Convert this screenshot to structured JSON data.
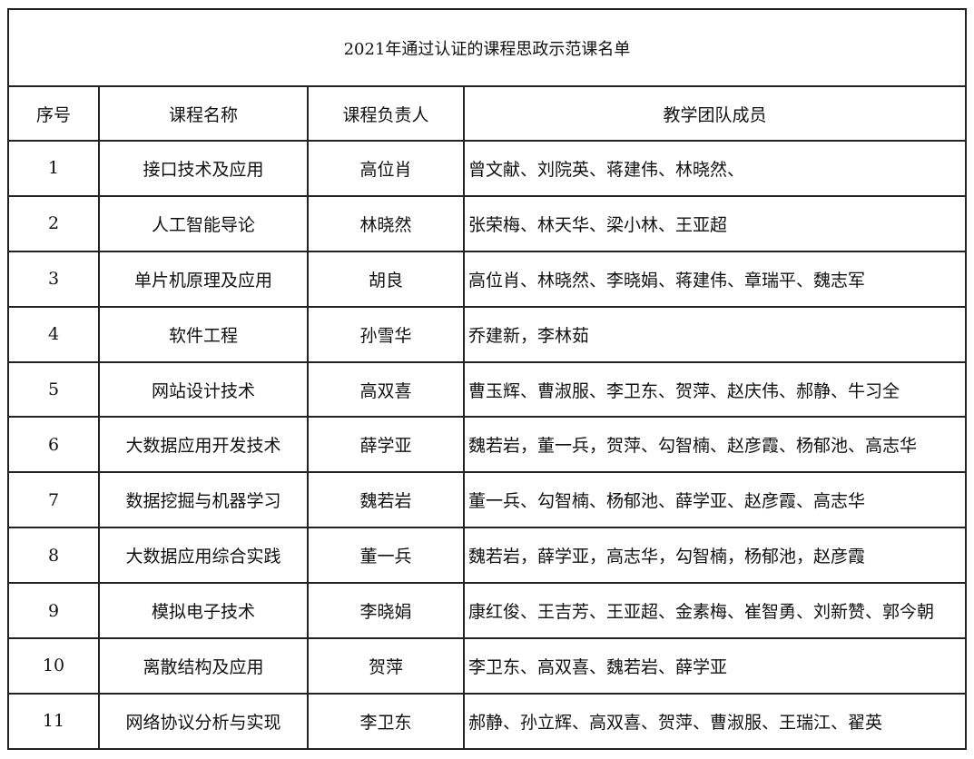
{
  "title": "2021年通过认证的课程思政示范课名单",
  "headers": [
    "序号",
    "课程名称",
    "课程负责人",
    "教学团队成员"
  ],
  "rows": [
    {
      "no": "1",
      "course": "接口技术及应用",
      "leader": "高位肖",
      "members": "曾文献、刘院英、蒋建伟、林晓然、"
    },
    {
      "no": "2",
      "course": "人工智能导论",
      "leader": "林晓然",
      "members": "张荣梅、林天华、梁小林、王亚超"
    },
    {
      "no": "3",
      "course": "单片机原理及应用",
      "leader": "胡良",
      "members": "高位肖、林晓然、李晓娟、蒋建伟、章瑞平、魏志军"
    },
    {
      "no": "4",
      "course": "软件工程",
      "leader": "孙雪华",
      "members": "乔建新，李林茹"
    },
    {
      "no": "5",
      "course": "网站设计技术",
      "leader": "高双喜",
      "members": "曹玉辉、曹淑服、李卫东、贺萍、赵庆伟、郝静、牛习全"
    },
    {
      "no": "6",
      "course": "大数据应用开发技术",
      "leader": "薛学亚",
      "members": "魏若岩，董一兵，贺萍、勾智楠、赵彦霞、杨郁池、高志华"
    },
    {
      "no": "7",
      "course": "数据挖掘与机器学习",
      "leader": "魏若岩",
      "members": "董一兵、勾智楠、杨郁池、薛学亚、赵彦霞、高志华"
    },
    {
      "no": "8",
      "course": "大数据应用综合实践",
      "leader": "董一兵",
      "members": "魏若岩，薛学亚，高志华，勾智楠，杨郁池，赵彦霞"
    },
    {
      "no": "9",
      "course": "模拟电子技术",
      "leader": "李晓娟",
      "members": "康红俊、王吉芳、王亚超、金素梅、崔智勇、刘新赞、郭今朝"
    },
    {
      "no": "10",
      "course": "离散结构及应用",
      "leader": "贺萍",
      "members": "李卫东、高双喜、魏若岩、薛学亚"
    },
    {
      "no": "11",
      "course": "网络协议分析与实现",
      "leader": "李卫东",
      "members": "郝静、孙立辉、高双喜、贺萍、曹淑服、王瑞江、翟英"
    }
  ]
}
